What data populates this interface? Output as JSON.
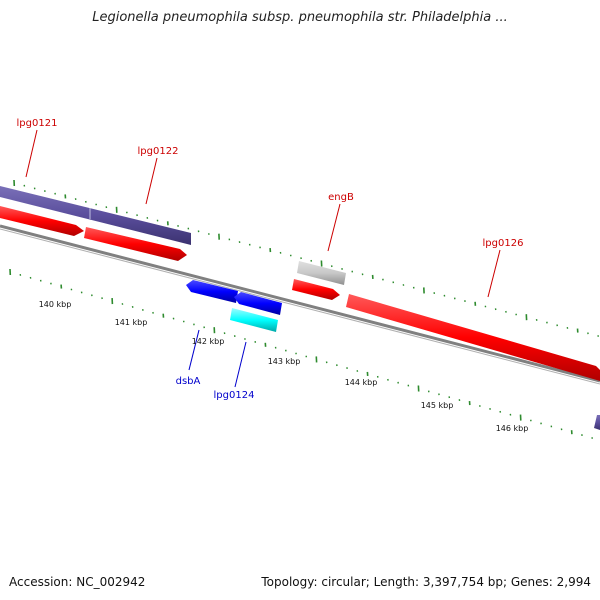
{
  "title": "Legionella pneumophila subsp. pneumophila str. Philadelphia ...",
  "footer": {
    "accession": "Accession: NC_002942",
    "summary": "Topology: circular; Length: 3,397,754 bp; Genes: 2,994"
  },
  "colors": {
    "forward_gene": "#ff0000",
    "reverse_gene": "#0000ff",
    "purple_band": "#5a4e9c",
    "tick": "#2e8b2e",
    "backbone": "#808080",
    "label_forward": "#cc0000",
    "label_reverse": "#0000cc"
  },
  "chart_data": {
    "type": "diagram",
    "scale_labels": [
      "140 kbp",
      "141 kbp",
      "142 kbp",
      "143 kbp",
      "144 kbp",
      "145 kbp",
      "146 kbp"
    ],
    "gene_labels": [
      {
        "name": "lpg0121",
        "strand": "forward"
      },
      {
        "name": "lpg0122",
        "strand": "forward"
      },
      {
        "name": "engB",
        "strand": "forward"
      },
      {
        "name": "lpg0126",
        "strand": "forward"
      },
      {
        "name": "dsbA",
        "strand": "reverse"
      },
      {
        "name": "lpg0124",
        "strand": "reverse"
      }
    ]
  }
}
